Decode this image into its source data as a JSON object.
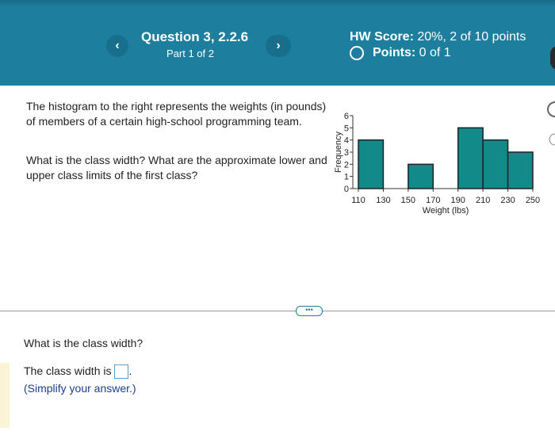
{
  "header": {
    "question": "Question 3, 2.2.6",
    "part": "Part 1 of 2",
    "score_label": "HW Score:",
    "score_value": "20%, 2 of 10 points",
    "points_label": "Points:",
    "points_value": "0 of 1"
  },
  "question": {
    "paragraphs": [
      "The histogram to the right represents the weights (in pounds) of members of a certain high-school programming team.",
      "What is the class width? What are the approximate lower and upper class limits of the first class?"
    ]
  },
  "answer": {
    "prompt": "What is the class width?",
    "line_prefix": "The class width is",
    "line_suffix": ".",
    "hint": "(Simplify your answer.)"
  },
  "chart_data": {
    "type": "histogram",
    "x_label": "Weight (lbs)",
    "y_label": "Frequency",
    "bins": [
      110,
      130,
      150,
      170,
      190,
      210,
      230,
      250
    ],
    "values": [
      4,
      0,
      2,
      0,
      5,
      4,
      3
    ],
    "color": "#138a8a",
    "xlim": [
      110,
      250
    ],
    "xticks": [
      110,
      130,
      150,
      170,
      190,
      210,
      230,
      250
    ],
    "ylim": [
      0,
      6
    ],
    "yticks": [
      0,
      1,
      2,
      3,
      4,
      5,
      6
    ]
  }
}
